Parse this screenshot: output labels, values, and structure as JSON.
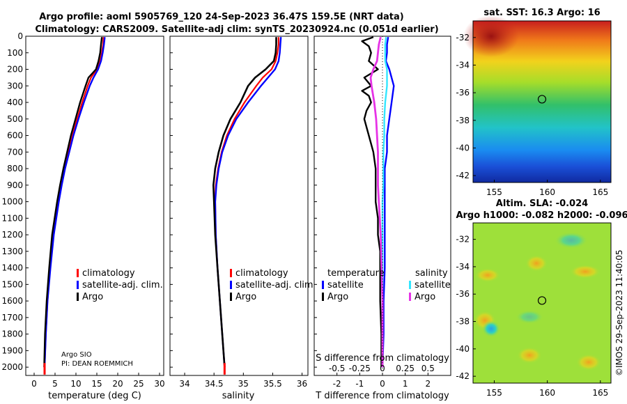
{
  "header": {
    "line1": "Argo profile: aoml 5905769_120 24-Sep-2023 36.47S 159.5E (NRT data)",
    "line2": "Climatology: CARS2009. Satellite-adj clim: synTS_20230924.nc (0.051d earlier)"
  },
  "colors": {
    "climatology": "#ff0000",
    "satellite": "#0000ff",
    "argo": "#000000",
    "sat_s": "#33e6ff",
    "argo_s": "#e633e6"
  },
  "chart_data": [
    {
      "type": "line",
      "id": "temperature",
      "xlabel": "temperature (deg C)",
      "xlim": [
        -2,
        31
      ],
      "xticks": [
        0,
        5,
        10,
        15,
        20,
        25,
        30
      ],
      "ylim": [
        0,
        2050
      ],
      "yticks": [
        0,
        100,
        200,
        300,
        400,
        500,
        600,
        700,
        800,
        900,
        1000,
        1100,
        1200,
        1300,
        1400,
        1500,
        1600,
        1700,
        1800,
        1900,
        2000
      ],
      "legend": [
        "climatology",
        "satellite-adj. clim.",
        "Argo"
      ],
      "annotation": [
        "Argo SIO",
        "PI: DEAN ROEMMICH"
      ],
      "series": [
        {
          "name": "climatology",
          "depth": [
            5,
            50,
            100,
            150,
            200,
            250,
            300,
            400,
            500,
            600,
            700,
            800,
            900,
            1000,
            1200,
            1400,
            1600,
            1800,
            2000
          ],
          "values": [
            16.6,
            16.5,
            16.2,
            15.8,
            15.0,
            13.6,
            12.8,
            11.5,
            10.3,
            9.2,
            8.2,
            7.3,
            6.5,
            5.8,
            4.6,
            3.8,
            3.2,
            2.8,
            2.5
          ]
        },
        {
          "name": "satellite-adj. clim.",
          "depth": [
            5,
            50,
            100,
            150,
            200,
            250,
            300,
            400,
            500,
            600,
            700,
            800,
            900,
            1000,
            1200,
            1400,
            1600,
            1800,
            2000
          ],
          "values": [
            16.9,
            16.7,
            16.4,
            16.0,
            15.3,
            14.2,
            13.3,
            11.9,
            10.6,
            9.4,
            8.4,
            7.4,
            6.6,
            5.9,
            4.7,
            3.9,
            3.2,
            2.8,
            2.5
          ]
        },
        {
          "name": "Argo",
          "depth": [
            5,
            50,
            100,
            150,
            200,
            250,
            300,
            400,
            500,
            600,
            700,
            800,
            900,
            1000,
            1200,
            1400,
            1600,
            1800,
            2000
          ],
          "values": [
            16.2,
            16.0,
            15.8,
            15.4,
            14.8,
            13.0,
            12.3,
            11.0,
            9.9,
            8.8,
            7.9,
            7.0,
            6.2,
            5.5,
            4.3,
            3.6,
            3.0,
            2.6,
            2.4
          ]
        }
      ]
    },
    {
      "type": "line",
      "id": "salinity",
      "xlabel": "salinity",
      "xlim": [
        33.75,
        36.1
      ],
      "xticks": [
        34,
        34.5,
        35,
        35.5,
        36
      ],
      "xticklabels": [
        "34",
        "34.5",
        "35",
        "35.5",
        "36"
      ],
      "ylim": [
        0,
        2050
      ],
      "legend": [
        "climatology",
        "satellite-adj. clim.",
        "Argo"
      ],
      "series": [
        {
          "name": "climatology",
          "depth": [
            5,
            50,
            100,
            150,
            200,
            250,
            300,
            400,
            500,
            600,
            700,
            800,
            900,
            1000,
            1200,
            1400,
            1600,
            1800,
            2000
          ],
          "values": [
            35.6,
            35.6,
            35.58,
            35.55,
            35.48,
            35.33,
            35.22,
            35.02,
            34.85,
            34.72,
            34.63,
            34.57,
            34.53,
            34.52,
            34.53,
            34.56,
            34.6,
            34.64,
            34.68
          ]
        },
        {
          "name": "satellite-adj. clim.",
          "depth": [
            5,
            50,
            100,
            150,
            200,
            250,
            300,
            400,
            500,
            600,
            700,
            800,
            900,
            1000,
            1200,
            1400,
            1600,
            1800,
            2000
          ],
          "values": [
            35.64,
            35.63,
            35.62,
            35.6,
            35.54,
            35.42,
            35.3,
            35.08,
            34.88,
            34.74,
            34.64,
            34.58,
            34.54,
            34.52,
            34.53,
            34.56,
            34.6,
            34.64,
            34.68
          ]
        },
        {
          "name": "Argo",
          "depth": [
            5,
            50,
            100,
            150,
            200,
            250,
            300,
            400,
            500,
            600,
            700,
            800,
            900,
            1000,
            1200,
            1400,
            1600,
            1800,
            2000
          ],
          "values": [
            35.56,
            35.56,
            35.55,
            35.52,
            35.38,
            35.2,
            35.08,
            34.95,
            34.78,
            34.66,
            34.58,
            34.52,
            34.49,
            34.5,
            34.52,
            34.56,
            34.6,
            34.64,
            34.68
          ]
        }
      ]
    },
    {
      "type": "line",
      "id": "difference",
      "xlabel": "T difference from climatology",
      "xlabel2": "S difference from climatology",
      "xlim": [
        -3,
        3
      ],
      "xticks": [
        -2,
        -1,
        0,
        1,
        2
      ],
      "xticks2": [
        -0.5,
        -0.25,
        0,
        0.25,
        0.5
      ],
      "xticklabels2": [
        "-0.5",
        "-0.25",
        "0",
        "0.25",
        "0.5"
      ],
      "ylim": [
        0,
        2050
      ],
      "legend_left_title": "temperature",
      "legend_right_title": "salinity",
      "legend": [
        "satellite",
        "Argo"
      ],
      "series": [
        {
          "name": "temperature satellite",
          "depth": [
            5,
            50,
            100,
            150,
            200,
            300,
            400,
            500,
            600,
            700,
            800,
            900,
            1000,
            1200,
            1400,
            1600,
            1800,
            2000
          ],
          "values": [
            0.25,
            0.2,
            0.2,
            0.15,
            0.3,
            0.5,
            0.4,
            0.3,
            0.2,
            0.2,
            0.1,
            0.1,
            0.1,
            0.1,
            0.1,
            0.05,
            0.05,
            0.0
          ]
        },
        {
          "name": "temperature Argo",
          "depth": [
            5,
            30,
            60,
            100,
            150,
            200,
            250,
            300,
            330,
            360,
            400,
            450,
            500,
            600,
            700,
            800,
            900,
            1000,
            1100,
            1200,
            1300,
            1400,
            1600,
            1800,
            2000
          ],
          "values": [
            -0.4,
            -0.9,
            -0.6,
            -0.5,
            -0.6,
            -0.2,
            -0.8,
            -0.5,
            -0.9,
            -0.6,
            -0.5,
            -0.7,
            -0.8,
            -0.6,
            -0.4,
            -0.3,
            -0.3,
            -0.3,
            -0.2,
            -0.2,
            -0.1,
            -0.1,
            -0.1,
            -0.05,
            -0.05
          ]
        },
        {
          "name": "salinity satellite",
          "depth": [
            5,
            50,
            100,
            150,
            200,
            300,
            400,
            500,
            600,
            700,
            800,
            900,
            1000,
            1200,
            1400,
            1600,
            1800,
            2000
          ],
          "values": [
            0.04,
            0.03,
            0.03,
            0.03,
            0.05,
            0.05,
            0.03,
            0.02,
            0.02,
            0.01,
            0.01,
            0.01,
            0.0,
            0.0,
            0.0,
            0.0,
            0.0,
            0.0
          ]
        },
        {
          "name": "salinity Argo",
          "depth": [
            5,
            50,
            100,
            150,
            200,
            250,
            300,
            400,
            500,
            600,
            700,
            800,
            900,
            1000,
            1200,
            1400,
            1600,
            1800,
            2000
          ],
          "values": [
            -0.02,
            -0.04,
            -0.05,
            -0.06,
            -0.1,
            -0.13,
            -0.12,
            -0.09,
            -0.07,
            -0.06,
            -0.05,
            -0.05,
            -0.05,
            -0.04,
            -0.02,
            -0.01,
            0.0,
            0.0,
            0.0
          ]
        }
      ]
    },
    {
      "type": "heatmap",
      "id": "sst-map",
      "title": "sat. SST: 16.3 Argo: 16",
      "xticks": [
        155,
        160,
        165
      ],
      "yticks": [
        -32,
        -34,
        -36,
        -38,
        -40,
        -42
      ],
      "xlim": [
        153,
        166
      ],
      "ylim": [
        -42.5,
        -30.8
      ],
      "argo_position": [
        159.5,
        -36.47
      ]
    },
    {
      "type": "heatmap",
      "id": "sla-map",
      "title_line1": "Altim. SLA: -0.024",
      "title_line2": "Argo h1000: -0.082 h2000: -0.096",
      "xticks": [
        155,
        160,
        165
      ],
      "yticks": [
        -32,
        -34,
        -36,
        -38,
        -40,
        -42
      ],
      "xlim": [
        153,
        166
      ],
      "ylim": [
        -42.5,
        -30.8
      ],
      "argo_position": [
        159.5,
        -36.47
      ]
    }
  ],
  "footer": {
    "copyright": "©IMOS 29-Sep-2023 11:40:05"
  }
}
